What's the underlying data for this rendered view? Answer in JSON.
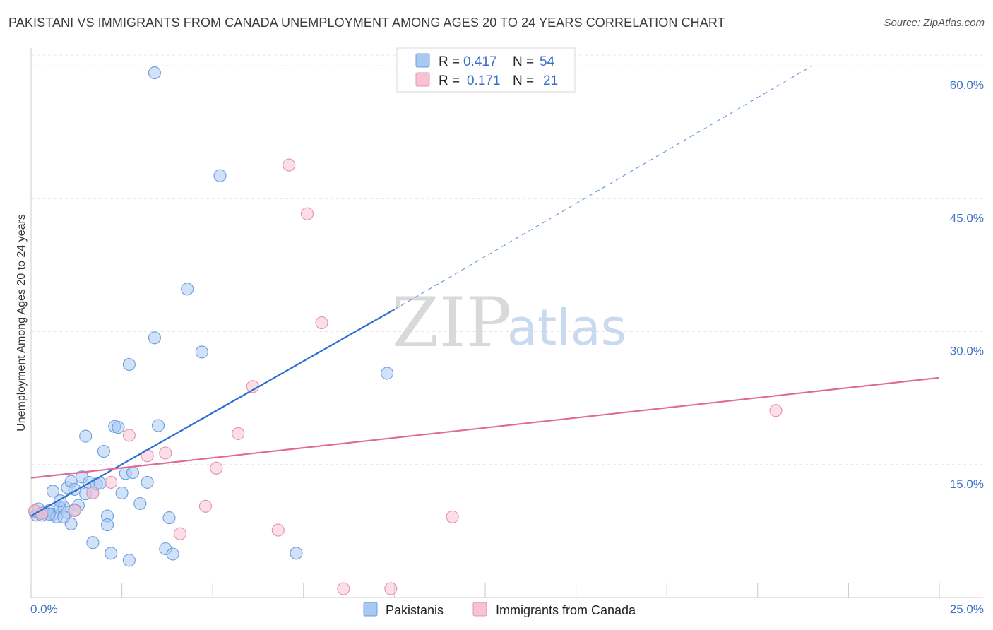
{
  "title": "PAKISTANI VS IMMIGRANTS FROM CANADA UNEMPLOYMENT AMONG AGES 20 TO 24 YEARS CORRELATION CHART",
  "source": "Source: ZipAtlas.com",
  "watermark": {
    "zip": "ZIP",
    "atlas": "atlas"
  },
  "legend": {
    "r_label": "R =",
    "n_label": "N =",
    "rows": [
      {
        "r": "0.417",
        "n": "54",
        "color": "#a9c8f2",
        "stroke": "#6b9fe0"
      },
      {
        "r": "0.171",
        "n": "21",
        "color": "#f7c3d4",
        "stroke": "#e890ac"
      }
    ]
  },
  "chart_data": {
    "type": "scatter",
    "title": "PAKISTANI VS IMMIGRANTS FROM CANADA UNEMPLOYMENT AMONG AGES 20 TO 24 YEARS CORRELATION CHART",
    "xlabel": "",
    "ylabel": "Unemployment Among Ages 20 to 24 years",
    "xlim": [
      0,
      25
    ],
    "ylim": [
      0,
      62
    ],
    "x_tick_labels": [
      "0.0%",
      "25.0%"
    ],
    "y_ticks": [
      15,
      30,
      45,
      60
    ],
    "y_tick_labels": [
      "15.0%",
      "30.0%",
      "45.0%",
      "60.0%"
    ],
    "grid": true,
    "legend_position": "top-center",
    "series": [
      {
        "name": "Pakistanis",
        "color": "#a9c8f2",
        "stroke": "#6b9fe0",
        "trend_color": "#2c6fd1",
        "trend": {
          "x0": 0.0,
          "y0": 9.2,
          "x1": 10.0,
          "y1": 32.5,
          "dash_to_x": 21.5,
          "dash_to_y": 60.0
        },
        "points": [
          [
            0.1,
            9.7
          ],
          [
            0.15,
            9.3
          ],
          [
            0.2,
            10.0
          ],
          [
            0.3,
            9.5
          ],
          [
            0.4,
            9.6
          ],
          [
            0.5,
            9.8
          ],
          [
            0.6,
            9.4
          ],
          [
            0.7,
            9.1
          ],
          [
            0.8,
            10.1
          ],
          [
            0.9,
            10.2
          ],
          [
            0.6,
            12.0
          ],
          [
            0.8,
            10.9
          ],
          [
            1.0,
            12.4
          ],
          [
            1.1,
            13.1
          ],
          [
            1.2,
            12.2
          ],
          [
            1.3,
            10.4
          ],
          [
            1.4,
            13.6
          ],
          [
            1.5,
            11.7
          ],
          [
            1.6,
            13.0
          ],
          [
            1.7,
            11.8
          ],
          [
            1.8,
            12.8
          ],
          [
            1.9,
            12.9
          ],
          [
            2.0,
            16.5
          ],
          [
            2.1,
            9.2
          ],
          [
            2.3,
            19.3
          ],
          [
            2.4,
            19.2
          ],
          [
            2.5,
            11.8
          ],
          [
            2.6,
            14.0
          ],
          [
            2.7,
            26.3
          ],
          [
            2.8,
            14.1
          ],
          [
            3.0,
            10.6
          ],
          [
            3.2,
            13.0
          ],
          [
            3.4,
            29.3
          ],
          [
            3.5,
            19.4
          ],
          [
            3.7,
            5.5
          ],
          [
            3.8,
            9.0
          ],
          [
            3.9,
            4.9
          ],
          [
            4.3,
            34.8
          ],
          [
            4.7,
            27.7
          ],
          [
            5.2,
            47.6
          ],
          [
            1.7,
            6.2
          ],
          [
            2.1,
            8.2
          ],
          [
            2.2,
            5.0
          ],
          [
            2.7,
            4.2
          ],
          [
            1.1,
            8.3
          ],
          [
            1.0,
            9.6
          ],
          [
            1.5,
            18.2
          ],
          [
            7.3,
            5.0
          ],
          [
            9.8,
            25.3
          ],
          [
            3.4,
            59.2
          ],
          [
            0.5,
            9.4
          ],
          [
            1.2,
            9.9
          ],
          [
            0.3,
            9.3
          ],
          [
            0.9,
            9.1
          ]
        ]
      },
      {
        "name": "Immigrants from Canada",
        "color": "#f7c3d4",
        "stroke": "#e890ac",
        "trend_color": "#e0689a",
        "trend": {
          "x0": 0.0,
          "y0": 13.5,
          "x1": 25.0,
          "y1": 24.8
        },
        "points": [
          [
            0.1,
            9.8
          ],
          [
            0.3,
            9.5
          ],
          [
            1.2,
            9.8
          ],
          [
            1.7,
            11.8
          ],
          [
            2.2,
            13.0
          ],
          [
            2.7,
            18.3
          ],
          [
            3.2,
            16.0
          ],
          [
            3.7,
            16.3
          ],
          [
            4.1,
            7.2
          ],
          [
            4.8,
            10.3
          ],
          [
            5.1,
            14.6
          ],
          [
            5.7,
            18.5
          ],
          [
            6.1,
            23.8
          ],
          [
            6.8,
            7.6
          ],
          [
            7.1,
            48.8
          ],
          [
            7.6,
            43.3
          ],
          [
            8.0,
            31.0
          ],
          [
            8.6,
            1.0
          ],
          [
            9.9,
            1.0
          ],
          [
            11.6,
            9.1
          ],
          [
            20.5,
            21.1
          ]
        ]
      }
    ]
  }
}
